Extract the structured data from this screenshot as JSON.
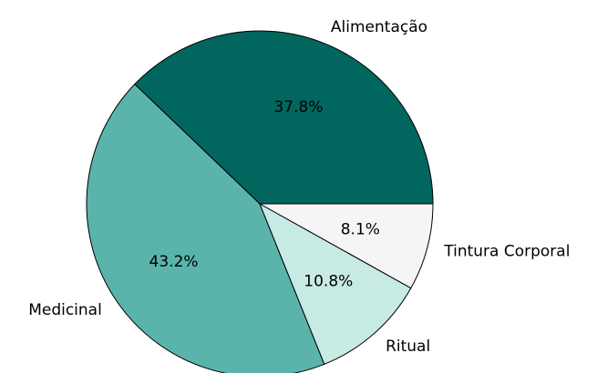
{
  "chart_data": {
    "type": "pie",
    "categories": [
      "Alimentação",
      "Medicinal",
      "Ritual",
      "Tintura Corporal"
    ],
    "values": [
      37.8,
      43.2,
      10.8,
      8.1
    ],
    "value_labels": [
      "37.8%",
      "43.2%",
      "10.8%",
      "8.1%"
    ],
    "colors": [
      "#01665e",
      "#5ab4ac",
      "#c7eae5",
      "#f5f5f5"
    ]
  }
}
